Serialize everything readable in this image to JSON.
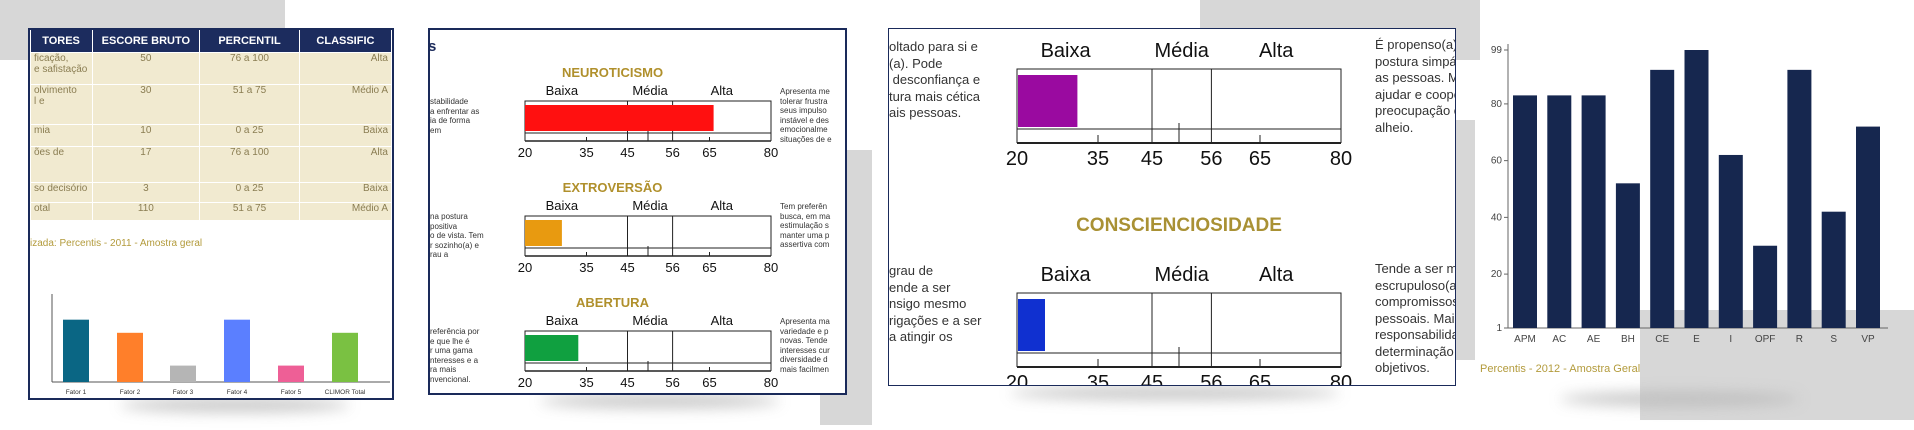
{
  "panel1": {
    "headers": [
      "TORES",
      "ESCORE BRUTO",
      "PERCENTIL",
      "CLASSIFIC"
    ],
    "rows": [
      {
        "f": "ficação,\ne safistação",
        "s": "50",
        "p": "76 a 100",
        "c": "Alta"
      },
      {
        "f": "olvimento\nl e",
        "s": "30",
        "p": "51 a 75",
        "c": "Médio A"
      },
      {
        "f": "mia",
        "s": "10",
        "p": "0 a 25",
        "c": "Baixa"
      },
      {
        "f": "ões de",
        "s": "17",
        "p": "76 a 100",
        "c": "Alta"
      },
      {
        "f": "so decisório",
        "s": "3",
        "p": "0 a 25",
        "c": "Baixa"
      },
      {
        "f": "otal",
        "s": "110",
        "p": "51 a 75",
        "c": "Médio A"
      }
    ],
    "caption": "izada: Percentis - 2011 - Amostra geral"
  },
  "panel2": {
    "scale_labels": [
      "Baixa",
      "Média",
      "Alta"
    ],
    "ticks": [
      "20",
      "35",
      "45",
      "56",
      "65",
      "80"
    ],
    "sections": [
      {
        "title": "NEUROTICISMO",
        "value": 66,
        "color": "#ff1010",
        "left_text": "stabilidade\na enfrentar as\nia de forma\nem",
        "right_text": "Apresenta me\ntolerar frustra\nseus impulso\ninstável e des\nemocionalme\nsituações de e"
      },
      {
        "title": "EXTROVERSÃO",
        "value": 29,
        "color": "#e89a10",
        "left_text": "na postura\npositiva\no de vista. Tem\nr sozinho(a) e\nrau a",
        "right_text": "Tem preferên\nbusca, em ma\nestimulação s\nmanter uma p\nassertiva com"
      },
      {
        "title": "ABERTURA",
        "value": 33,
        "color": "#10a040",
        "left_text": "referência por\ne que lhe é\nr uma gama\nnteresses e a\nra mais\nnvencional.",
        "right_text": "Apresenta ma\nvariedade e p\nnovas. Tende\ninteresses cur\ndiversidade d\nmais facilmen"
      }
    ]
  },
  "panel3": {
    "scale_labels": [
      "Baixa",
      "Média",
      "Alta"
    ],
    "ticks": [
      "20",
      "35",
      "45",
      "56",
      "65",
      "80"
    ],
    "section_title": "CONSCIENCIOSIDADE",
    "bar1": {
      "value": 31,
      "color": "#9a0aa0"
    },
    "bar2": {
      "value": 25,
      "color": "#1030d0"
    },
    "left_top": "oltado para si e\n(a). Pode\n desconfiança e\ntura mais cética\nais pessoas.",
    "right_top": "É propenso(a) a\npostura simpát\nas pessoas. Mai\najudar e cooper\npreocupação co\nalheio.",
    "left_bottom": "grau de\nende a ser\nnsigo mesmo\nrigações e a ser\na atingir os",
    "right_bottom": "Tende a ser ma\nescrupuloso(a)\ncompromissos\npessoais. Maior\nresponsabilida\ndeterminação p\nobjetivos."
  },
  "panel4": {
    "caption": "Percentis - 2012 - Amostra Geral",
    "color": "#16274f"
  },
  "chart_data": [
    {
      "type": "bar",
      "categories": [
        "Fator 1",
        "Fator 2",
        "Fator 3",
        "Fator 4",
        "Fator 5",
        "CLIMOR Total"
      ],
      "values": [
        76,
        60,
        20,
        76,
        20,
        60
      ],
      "colors": [
        "#0a6684",
        "#ff7f2a",
        "#b5b5b5",
        "#5b7fff",
        "#ee5f96",
        "#7ac142"
      ],
      "ylim": [
        0,
        100
      ]
    },
    {
      "type": "bar",
      "categories": [
        "APM",
        "AC",
        "AE",
        "BH",
        "CE",
        "E",
        "I",
        "OPF",
        "R",
        "S",
        "VP"
      ],
      "values": [
        83,
        83,
        83,
        52,
        92,
        99,
        62,
        30,
        92,
        42,
        72
      ],
      "yticks": [
        "1",
        "20",
        "40",
        "60",
        "80",
        "99"
      ],
      "ylim": [
        1,
        99
      ]
    }
  ]
}
